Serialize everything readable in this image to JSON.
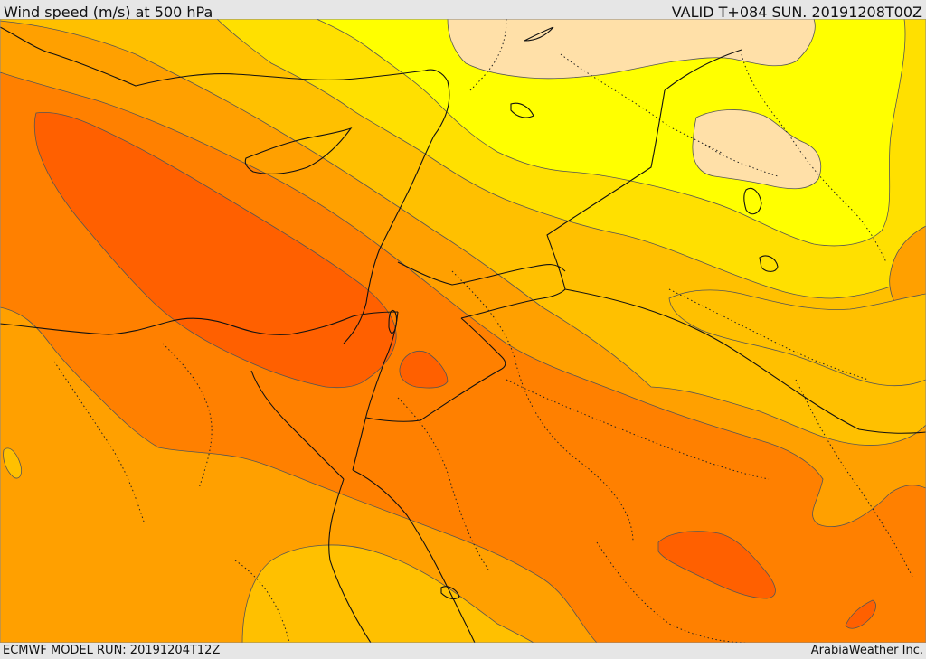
{
  "header": {
    "title": "Wind speed (m/s) at 500 hPa",
    "valid": "VALID T+084 SUN. 20191208T00Z"
  },
  "footer": {
    "model_run": "ECMWF MODEL RUN: 20191204T12Z",
    "credit": "ArabiaWeather Inc."
  },
  "colors": {
    "background": "#ffa000",
    "band_gold": "#ffc000",
    "band_yellow": "#ffe000",
    "band_light_yellow": "#ffff00",
    "band_peach": "#ffe0a8",
    "band_orange": "#ff8000",
    "band_dark_orange": "#ff6000"
  }
}
